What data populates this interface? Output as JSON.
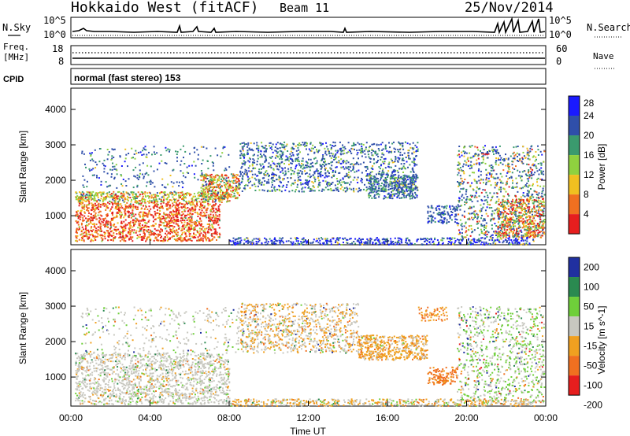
{
  "header": {
    "station": "Hokkaido West (fitACF)",
    "beam": "Beam 11",
    "date": "25/Nov/2014"
  },
  "noise_panel": {
    "left_label": "N.Sky",
    "right_label": "N.Search",
    "y_ticks": [
      "10^5",
      "10^0"
    ]
  },
  "freq_panel": {
    "left_label_line1": "Freq.",
    "left_label_line2": "[MHz]",
    "left_ticks": [
      "18",
      "8"
    ],
    "right_label": "Nave",
    "right_ticks": [
      "60",
      "0"
    ]
  },
  "cpid": {
    "label": "CPID",
    "text": "normal (fast stereo) 153"
  },
  "chart_data": [
    {
      "type": "heatmap",
      "ylabel": "Slant Range [km]",
      "ylim": [
        180,
        4600
      ],
      "y_ticks": [
        1000,
        2000,
        3000,
        4000
      ],
      "colorbar": {
        "label": "Power [dB]",
        "ticks": [
          "4",
          "8",
          "12",
          "16",
          "20",
          "24",
          "28"
        ],
        "colors": [
          "#1a1aff",
          "#2f4faa",
          "#3a9a6e",
          "#8fd13f",
          "#f0c020",
          "#f07020",
          "#e61e1e"
        ]
      }
    },
    {
      "type": "heatmap",
      "ylabel": "Slant Range [km]",
      "ylim": [
        180,
        4600
      ],
      "y_ticks": [
        1000,
        2000,
        3000,
        4000
      ],
      "colorbar": {
        "label": "Velocity [m s^-1]",
        "ticks": [
          "200",
          "100",
          "50",
          "15",
          "-15",
          "-50",
          "-100",
          "-200"
        ],
        "colors": [
          "#2030a0",
          "#2a8a50",
          "#6fcf3a",
          "#c8c8c0",
          "#f0a020",
          "#f07020",
          "#e61e1e"
        ]
      }
    }
  ],
  "x_axis": {
    "ticks": [
      "00:00",
      "04:00",
      "08:00",
      "12:00",
      "16:00",
      "20:00",
      "00:00"
    ],
    "label": "Time UT"
  }
}
